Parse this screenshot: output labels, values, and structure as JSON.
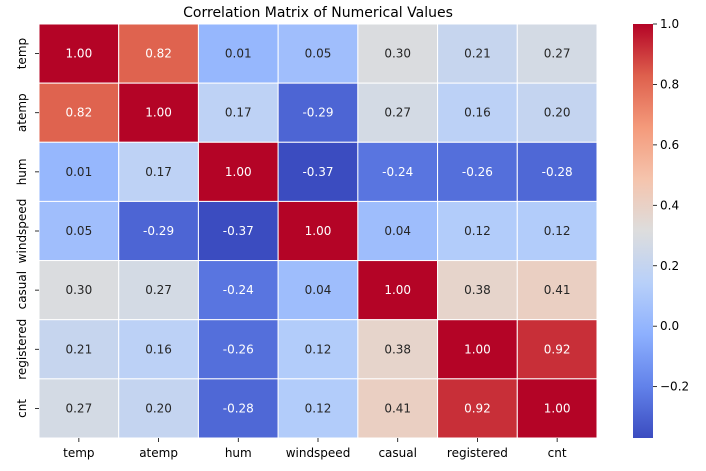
{
  "chart_data": {
    "type": "heatmap",
    "title": "Correlation Matrix of Numerical Values",
    "x_categories": [
      "temp",
      "atemp",
      "hum",
      "windspeed",
      "casual",
      "registered",
      "cnt"
    ],
    "y_categories": [
      "temp",
      "atemp",
      "hum",
      "windspeed",
      "casual",
      "registered",
      "cnt"
    ],
    "values": [
      [
        1.0,
        0.82,
        0.01,
        0.05,
        0.3,
        0.21,
        0.27
      ],
      [
        0.82,
        1.0,
        0.17,
        -0.29,
        0.27,
        0.16,
        0.2
      ],
      [
        0.01,
        0.17,
        1.0,
        -0.37,
        -0.24,
        -0.26,
        -0.28
      ],
      [
        0.05,
        -0.29,
        -0.37,
        1.0,
        0.04,
        0.12,
        0.12
      ],
      [
        0.3,
        0.27,
        -0.24,
        0.04,
        1.0,
        0.38,
        0.41
      ],
      [
        0.21,
        0.16,
        -0.26,
        0.12,
        0.38,
        1.0,
        0.92
      ],
      [
        0.27,
        0.2,
        -0.28,
        0.12,
        0.41,
        0.92,
        1.0
      ]
    ],
    "value_format": "0.00",
    "colormap": "coolwarm",
    "colorbar": {
      "range": [
        -0.37,
        1.0
      ],
      "ticks": [
        -0.2,
        0.0,
        0.2,
        0.4,
        0.6,
        0.8,
        1.0
      ],
      "tick_labels": [
        "−0.2",
        "0.0",
        "0.2",
        "0.4",
        "0.6",
        "0.8",
        "1.0"
      ]
    },
    "cell_borders": "white",
    "grid": false,
    "legend": "colorbar right"
  }
}
